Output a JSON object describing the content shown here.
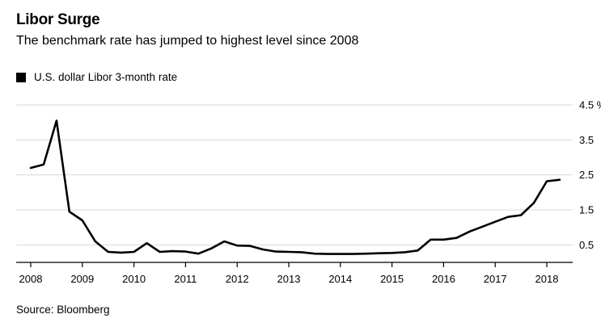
{
  "source_label": "Source: Bloomberg",
  "chart_data": {
    "type": "line",
    "title": "Libor Surge",
    "subtitle": "The benchmark rate has jumped to highest level since 2008",
    "legend_position": "top-left",
    "grid": true,
    "y_axis_side": "right",
    "ylim": [
      0,
      4.5
    ],
    "xlim": [
      2008,
      2018.5
    ],
    "y_ticks": [
      {
        "value": 0.5,
        "label": "0.5"
      },
      {
        "value": 1.5,
        "label": "1.5"
      },
      {
        "value": 2.5,
        "label": "2.5"
      },
      {
        "value": 3.5,
        "label": "3.5"
      },
      {
        "value": 4.5,
        "label": "4.5 %"
      }
    ],
    "x_ticks": [
      "2008",
      "2009",
      "2010",
      "2011",
      "2012",
      "2013",
      "2014",
      "2015",
      "2016",
      "2017",
      "2018"
    ],
    "series": [
      {
        "name": "U.S. dollar Libor 3-month rate",
        "color": "#000000",
        "x": [
          2008.0,
          2008.25,
          2008.5,
          2008.75,
          2009.0,
          2009.25,
          2009.5,
          2009.75,
          2010.0,
          2010.25,
          2010.5,
          2010.75,
          2011.0,
          2011.25,
          2011.5,
          2011.75,
          2012.0,
          2012.25,
          2012.5,
          2012.75,
          2013.0,
          2013.25,
          2013.5,
          2013.75,
          2014.0,
          2014.25,
          2014.5,
          2014.75,
          2015.0,
          2015.25,
          2015.5,
          2015.75,
          2016.0,
          2016.25,
          2016.5,
          2016.75,
          2017.0,
          2017.25,
          2017.5,
          2017.75,
          2018.0,
          2018.25
        ],
        "values": [
          2.7,
          2.8,
          4.05,
          1.45,
          1.2,
          0.6,
          0.3,
          0.28,
          0.3,
          0.55,
          0.3,
          0.32,
          0.31,
          0.25,
          0.4,
          0.6,
          0.48,
          0.47,
          0.37,
          0.31,
          0.3,
          0.29,
          0.25,
          0.24,
          0.24,
          0.24,
          0.25,
          0.26,
          0.27,
          0.29,
          0.34,
          0.65,
          0.65,
          0.7,
          0.88,
          1.02,
          1.16,
          1.3,
          1.35,
          1.7,
          2.32,
          2.36
        ]
      }
    ]
  }
}
